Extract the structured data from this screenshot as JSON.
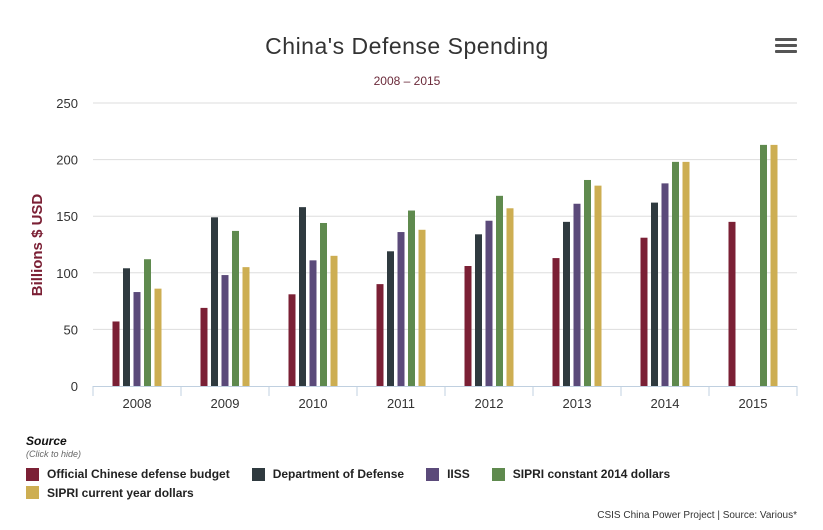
{
  "chart_data": {
    "type": "bar",
    "title": "China's Defense Spending",
    "subtitle": "2008 – 2015",
    "ylabel": "Billions $ USD",
    "xlabel": "",
    "ylim": [
      0,
      250
    ],
    "yticks": [
      0,
      50,
      100,
      150,
      200,
      250
    ],
    "grid": true,
    "legend_position": "bottom-left",
    "categories": [
      "2008",
      "2009",
      "2010",
      "2011",
      "2012",
      "2013",
      "2014",
      "2015"
    ],
    "series": [
      {
        "name": "Official Chinese defense budget",
        "color": "#7b2035",
        "values": [
          57,
          69,
          81,
          90,
          106,
          113,
          131,
          145
        ]
      },
      {
        "name": "Department of Defense",
        "color": "#2f3a3f",
        "values": [
          104,
          149,
          158,
          119,
          134,
          145,
          162,
          null
        ]
      },
      {
        "name": "IISS",
        "color": "#5b4a7a",
        "values": [
          83,
          98,
          111,
          136,
          146,
          161,
          179,
          null
        ]
      },
      {
        "name": "SIPRI constant 2014 dollars",
        "color": "#5f8a4e",
        "values": [
          112,
          137,
          144,
          155,
          168,
          182,
          198,
          213
        ]
      },
      {
        "name": "SIPRI current year dollars",
        "color": "#cdae52",
        "values": [
          86,
          105,
          115,
          138,
          157,
          177,
          198,
          213
        ]
      }
    ]
  },
  "source": {
    "title": "Source",
    "hint": "(Click to hide)"
  },
  "credits": "CSIS China Power Project | Source: Various*",
  "menu_icon": "hamburger-menu-icon"
}
